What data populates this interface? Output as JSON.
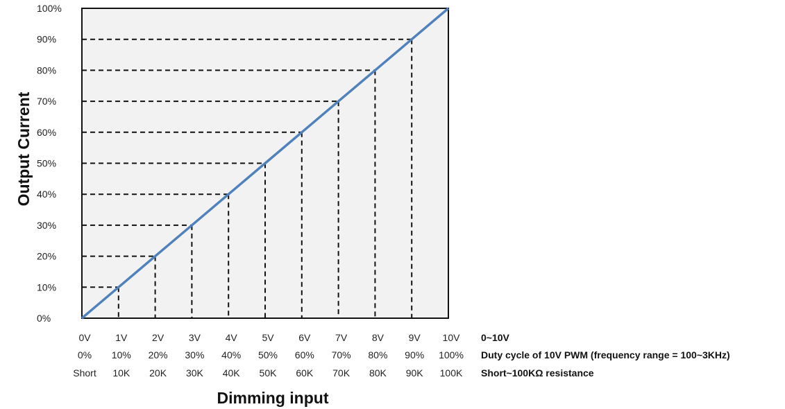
{
  "chart_data": {
    "type": "line",
    "title": "",
    "xlabel": "Dimming input",
    "ylabel": "Output Current",
    "x": [
      0,
      1,
      2,
      3,
      4,
      5,
      6,
      7,
      8,
      9,
      10
    ],
    "series": [
      {
        "name": "",
        "values": [
          0,
          10,
          20,
          30,
          40,
          50,
          60,
          70,
          80,
          90,
          100
        ],
        "color": "#4f81bd"
      }
    ],
    "xlim": [
      0,
      10
    ],
    "ylim": [
      0,
      100
    ],
    "y_ticks": [
      "0%",
      "10%",
      "20%",
      "30%",
      "40%",
      "50%",
      "60%",
      "70%",
      "80%",
      "90%",
      "100%"
    ],
    "x_tick_rows": [
      {
        "labels": [
          "0V",
          "1V",
          "2V",
          "3V",
          "4V",
          "5V",
          "6V",
          "7V",
          "8V",
          "9V",
          "10V"
        ],
        "description": "0~10V"
      },
      {
        "labels": [
          "0%",
          "10%",
          "20%",
          "30%",
          "40%",
          "50%",
          "60%",
          "70%",
          "80%",
          "90%",
          "100%"
        ],
        "description": "Duty cycle of 10V PWM (frequency range = 100~3KHz)"
      },
      {
        "labels": [
          "Short",
          "10K",
          "20K",
          "30K",
          "40K",
          "50K",
          "60K",
          "70K",
          "80K",
          "90K",
          "100K"
        ],
        "description": "Short~100KΩ  resistance"
      }
    ],
    "guide_lines": "dashed",
    "grid": false,
    "plot_background": "#f2f2f2"
  }
}
